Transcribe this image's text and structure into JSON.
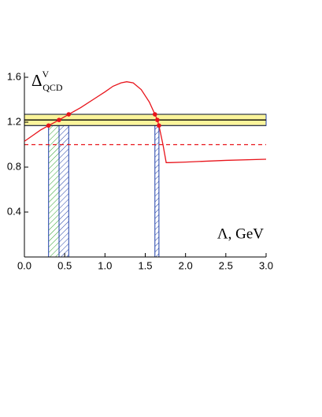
{
  "chart_data": {
    "type": "line",
    "y_label": {
      "symbol": "Δ",
      "superscript": "V",
      "subscript": "QCD"
    },
    "x_label": "Λ, GeV",
    "xlim": [
      0,
      3
    ],
    "ylim": [
      0,
      1.6
    ],
    "xticks": [
      {
        "value": 0,
        "label": "0.0"
      },
      0.5,
      {
        "value": 1,
        "label": "1.0"
      },
      1.5,
      {
        "value": 2,
        "label": "2.0"
      },
      2.5,
      {
        "value": 3,
        "label": "3.0"
      }
    ],
    "yticks": [
      0.4,
      0.8,
      1.2,
      1.6
    ],
    "series": [
      {
        "color": "#e8141b",
        "x": [
          0,
          0.1,
          0.2,
          0.3,
          0.43,
          0.55,
          0.7,
          0.85,
          1.0,
          1.1,
          1.2,
          1.27,
          1.35,
          1.45,
          1.55,
          1.62,
          1.65,
          1.67,
          1.72,
          1.76,
          1.8,
          2.0,
          2.5,
          3.0
        ],
        "values": [
          1.03,
          1.08,
          1.13,
          1.17,
          1.22,
          1.27,
          1.33,
          1.4,
          1.47,
          1.52,
          1.55,
          1.56,
          1.55,
          1.49,
          1.38,
          1.27,
          1.22,
          1.17,
          1.0,
          0.84,
          0.84,
          0.845,
          0.86,
          0.87
        ]
      }
    ],
    "points": {
      "color": "#e8141b",
      "x": [
        0.3,
        0.43,
        0.55,
        1.62,
        1.65,
        1.67
      ],
      "values": [
        1.17,
        1.22,
        1.27,
        1.27,
        1.22,
        1.17
      ]
    },
    "band": {
      "low": 1.17,
      "center": 1.22,
      "high": 1.27,
      "color": "#fbf59b"
    },
    "reference_line": {
      "value": 1.0,
      "color": "#e8141b"
    },
    "regions": [
      {
        "from": 0.3,
        "to": 0.43,
        "color": "#2ca02c"
      },
      {
        "from": 0.43,
        "to": 0.55,
        "color": "#1f3fa8"
      },
      {
        "from": 1.62,
        "to": 1.67,
        "color": "#1f3fa8"
      }
    ]
  }
}
